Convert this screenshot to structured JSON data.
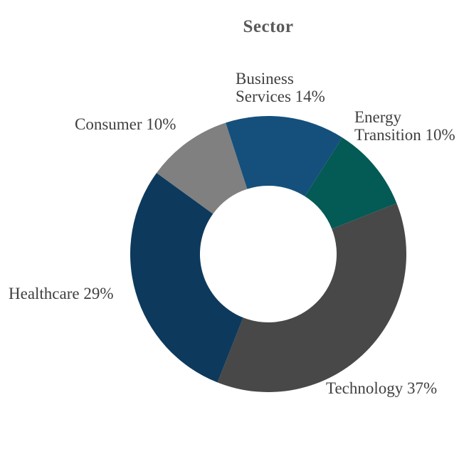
{
  "page": {
    "background_color": "#ffffff"
  },
  "chart_data": {
    "type": "pie",
    "subtype": "donut",
    "title": "Sector",
    "title_color": "#595959",
    "label_color": "#404040",
    "legend_position": "none",
    "start_angle_deg": -18,
    "clockwise": true,
    "hole_radius_ratio": 0.495,
    "categories": [
      "Business Services",
      "Energy Transition",
      "Technology",
      "Healthcare",
      "Consumer"
    ],
    "values": [
      14,
      10,
      37,
      29,
      10
    ],
    "segments": [
      {
        "label": "Business Services",
        "value_pct": 14,
        "color": "#15507C",
        "label_text": "Business\nServices 14%"
      },
      {
        "label": "Energy Transition",
        "value_pct": 10,
        "color": "#045A55",
        "label_text": "Energy\nTransition 10%"
      },
      {
        "label": "Technology",
        "value_pct": 37,
        "color": "#484848",
        "label_text": "Technology 37%"
      },
      {
        "label": "Healthcare",
        "value_pct": 29,
        "color": "#0D3A5C",
        "label_text": "Healthcare 29%"
      },
      {
        "label": "Consumer",
        "value_pct": 10,
        "color": "#808080",
        "label_text": "Consumer 10%"
      }
    ]
  }
}
